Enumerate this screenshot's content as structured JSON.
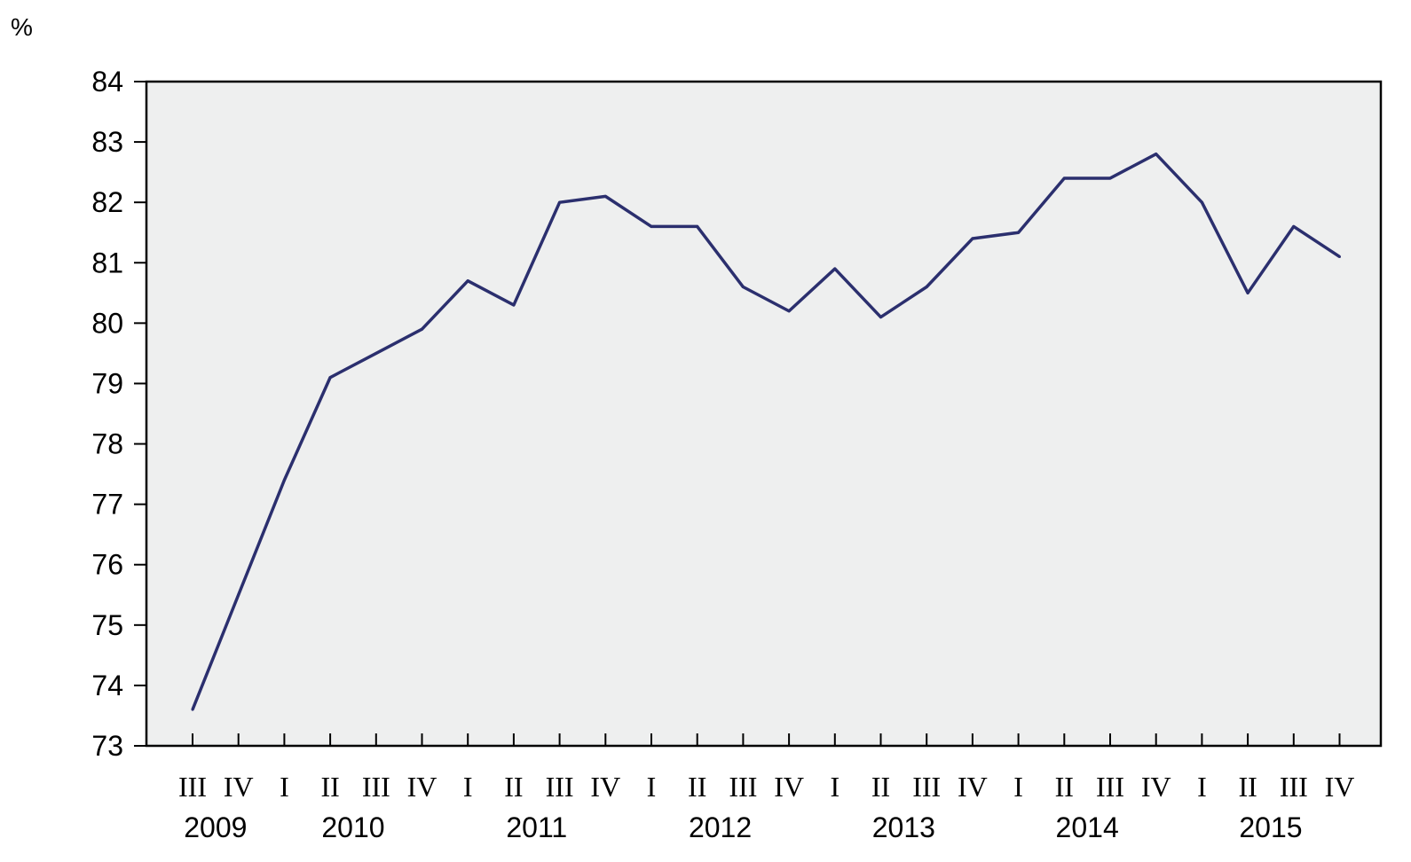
{
  "chart_data": {
    "type": "line",
    "title": "",
    "xlabel": "",
    "ylabel": "%",
    "ylim": [
      73,
      84
    ],
    "yticks": [
      "73",
      "74",
      "75",
      "76",
      "77",
      "78",
      "79",
      "80",
      "81",
      "82",
      "83",
      "84"
    ],
    "grid": false,
    "legend": "none",
    "line_color": "#2b2f6e",
    "plot_background": "#eeefef",
    "categories": [
      {
        "quarter": "III",
        "year": "2009"
      },
      {
        "quarter": "IV",
        "year": "2009"
      },
      {
        "quarter": "I",
        "year": "2010"
      },
      {
        "quarter": "II",
        "year": "2010"
      },
      {
        "quarter": "III",
        "year": "2010"
      },
      {
        "quarter": "IV",
        "year": "2010"
      },
      {
        "quarter": "I",
        "year": "2011"
      },
      {
        "quarter": "II",
        "year": "2011"
      },
      {
        "quarter": "III",
        "year": "2011"
      },
      {
        "quarter": "IV",
        "year": "2011"
      },
      {
        "quarter": "I",
        "year": "2012"
      },
      {
        "quarter": "II",
        "year": "2012"
      },
      {
        "quarter": "III",
        "year": "2012"
      },
      {
        "quarter": "IV",
        "year": "2012"
      },
      {
        "quarter": "I",
        "year": "2013"
      },
      {
        "quarter": "II",
        "year": "2013"
      },
      {
        "quarter": "III",
        "year": "2013"
      },
      {
        "quarter": "IV",
        "year": "2013"
      },
      {
        "quarter": "I",
        "year": "2014"
      },
      {
        "quarter": "II",
        "year": "2014"
      },
      {
        "quarter": "III",
        "year": "2014"
      },
      {
        "quarter": "IV",
        "year": "2014"
      },
      {
        "quarter": "I",
        "year": "2015"
      },
      {
        "quarter": "II",
        "year": "2015"
      },
      {
        "quarter": "III",
        "year": "2015"
      },
      {
        "quarter": "IV",
        "year": "2015"
      }
    ],
    "years": [
      "2009",
      "2010",
      "2011",
      "2012",
      "2013",
      "2014",
      "2015"
    ],
    "series": [
      {
        "values": [
          73.6,
          75.5,
          77.4,
          79.1,
          79.5,
          79.9,
          80.7,
          80.3,
          82.0,
          82.1,
          81.6,
          81.6,
          80.6,
          80.2,
          80.9,
          80.1,
          80.6,
          81.4,
          81.5,
          82.4,
          82.4,
          82.8,
          82.0,
          80.5,
          81.6,
          81.1
        ]
      }
    ]
  }
}
